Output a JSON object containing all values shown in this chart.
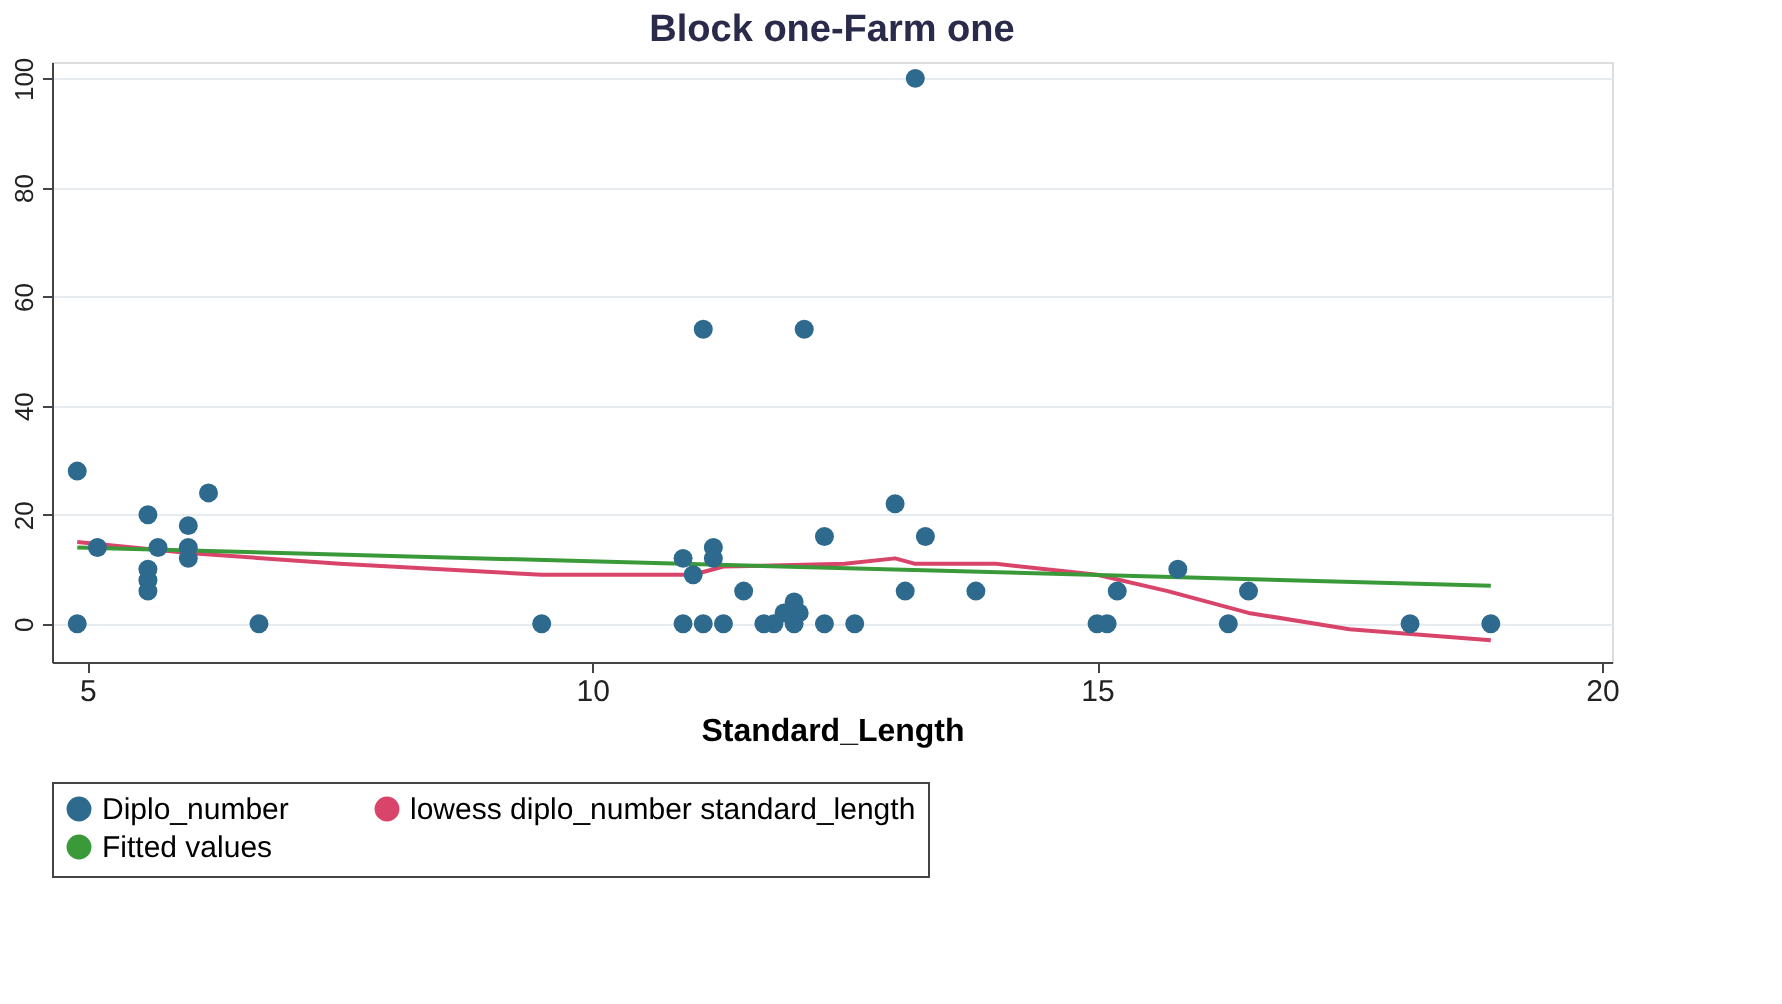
{
  "chart_data": {
    "type": "scatter",
    "title": "Block one-Farm one",
    "xlabel": "Standard_Length",
    "xlim": [
      4.65,
      20.1
    ],
    "xticks": [
      5,
      10,
      15,
      20
    ],
    "ylim": [
      -7,
      103
    ],
    "yticks": [
      0,
      20,
      40,
      60,
      80,
      100
    ],
    "grid": "y",
    "legend": "bottom",
    "series": [
      {
        "name": "Diplo_number",
        "marker": "circle",
        "color": "#2e6a8e",
        "x": [
          4.9,
          4.9,
          5.1,
          5.6,
          5.6,
          5.6,
          5.6,
          5.7,
          6.0,
          6.0,
          6.0,
          6.2,
          6.7,
          9.5,
          10.9,
          10.9,
          11.0,
          11.1,
          11.1,
          11.2,
          11.3,
          11.2,
          11.5,
          11.7,
          11.8,
          11.9,
          12.0,
          12.0,
          12.05,
          12.1,
          12.3,
          12.3,
          12.6,
          13.0,
          13.1,
          13.2,
          13.3,
          13.8,
          15.0,
          15.1,
          15.2,
          15.8,
          16.3,
          16.5,
          18.1,
          18.9
        ],
        "values": [
          0,
          28,
          14,
          20,
          10,
          8,
          6,
          14,
          18,
          14,
          12,
          24,
          0,
          0,
          0,
          12,
          9,
          54,
          0,
          12,
          0,
          14,
          6,
          0,
          0,
          2,
          4,
          0,
          2,
          54,
          16,
          0,
          0,
          22,
          6,
          100,
          16,
          6,
          0,
          0,
          6,
          10,
          0,
          6,
          0,
          0
        ]
      },
      {
        "name": "lowess diplo_number standard_length",
        "type": "line",
        "line_style": "solid",
        "color": "#d9446a",
        "x": [
          4.9,
          6.0,
          7.5,
          9.5,
          11.0,
          11.3,
          12.5,
          13.0,
          13.2,
          14.0,
          15.0,
          15.7,
          16.5,
          17.5,
          18.9
        ],
        "values": [
          15,
          13,
          11,
          9,
          9,
          10.5,
          11,
          12,
          11,
          11,
          9,
          6,
          2,
          -1,
          -3
        ]
      },
      {
        "name": "Fitted values",
        "type": "line",
        "line_style": "solid",
        "color": "#3a9a3a",
        "x": [
          4.9,
          18.9
        ],
        "values": [
          14,
          7
        ]
      }
    ]
  }
}
